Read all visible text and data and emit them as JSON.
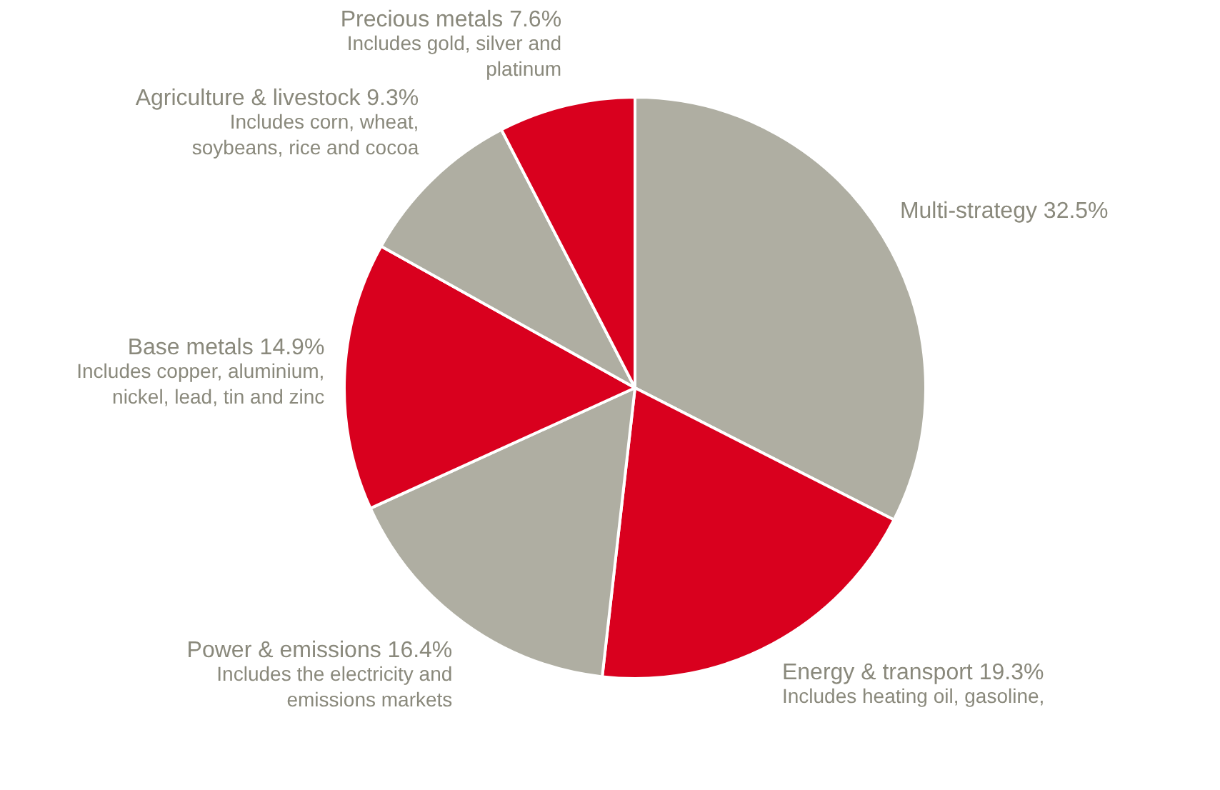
{
  "chart_data": {
    "type": "pie",
    "categories": [
      "Multi-strategy",
      "Energy & transport",
      "Power & emissions",
      "Base metals",
      "Agriculture & livestock",
      "Precious metals"
    ],
    "values": [
      32.5,
      19.3,
      16.4,
      14.9,
      9.3,
      7.6
    ],
    "value_labels": [
      "32.5%",
      "19.3%",
      "16.4%",
      "14.9%",
      "9.3%",
      "7.6%"
    ],
    "colors": [
      "#afaea2",
      "#d9001e",
      "#afaea2",
      "#d9001e",
      "#afaea2",
      "#d9001e"
    ],
    "annotations": [
      {
        "text": "Includes heating oil, gasoline,",
        "x": "Energy & transport"
      },
      {
        "text": "Includes the electricity and emissions markets",
        "x": "Power & emissions"
      },
      {
        "text": "Includes copper, aluminium, nickel, lead, tin and zinc",
        "x": "Base metals"
      },
      {
        "text": "Includes corn, wheat, soybeans, rice and cocoa",
        "x": "Agriculture & livestock"
      },
      {
        "text": "Includes gold, silver and platinum",
        "x": "Precious metals"
      }
    ],
    "legend": false
  }
}
